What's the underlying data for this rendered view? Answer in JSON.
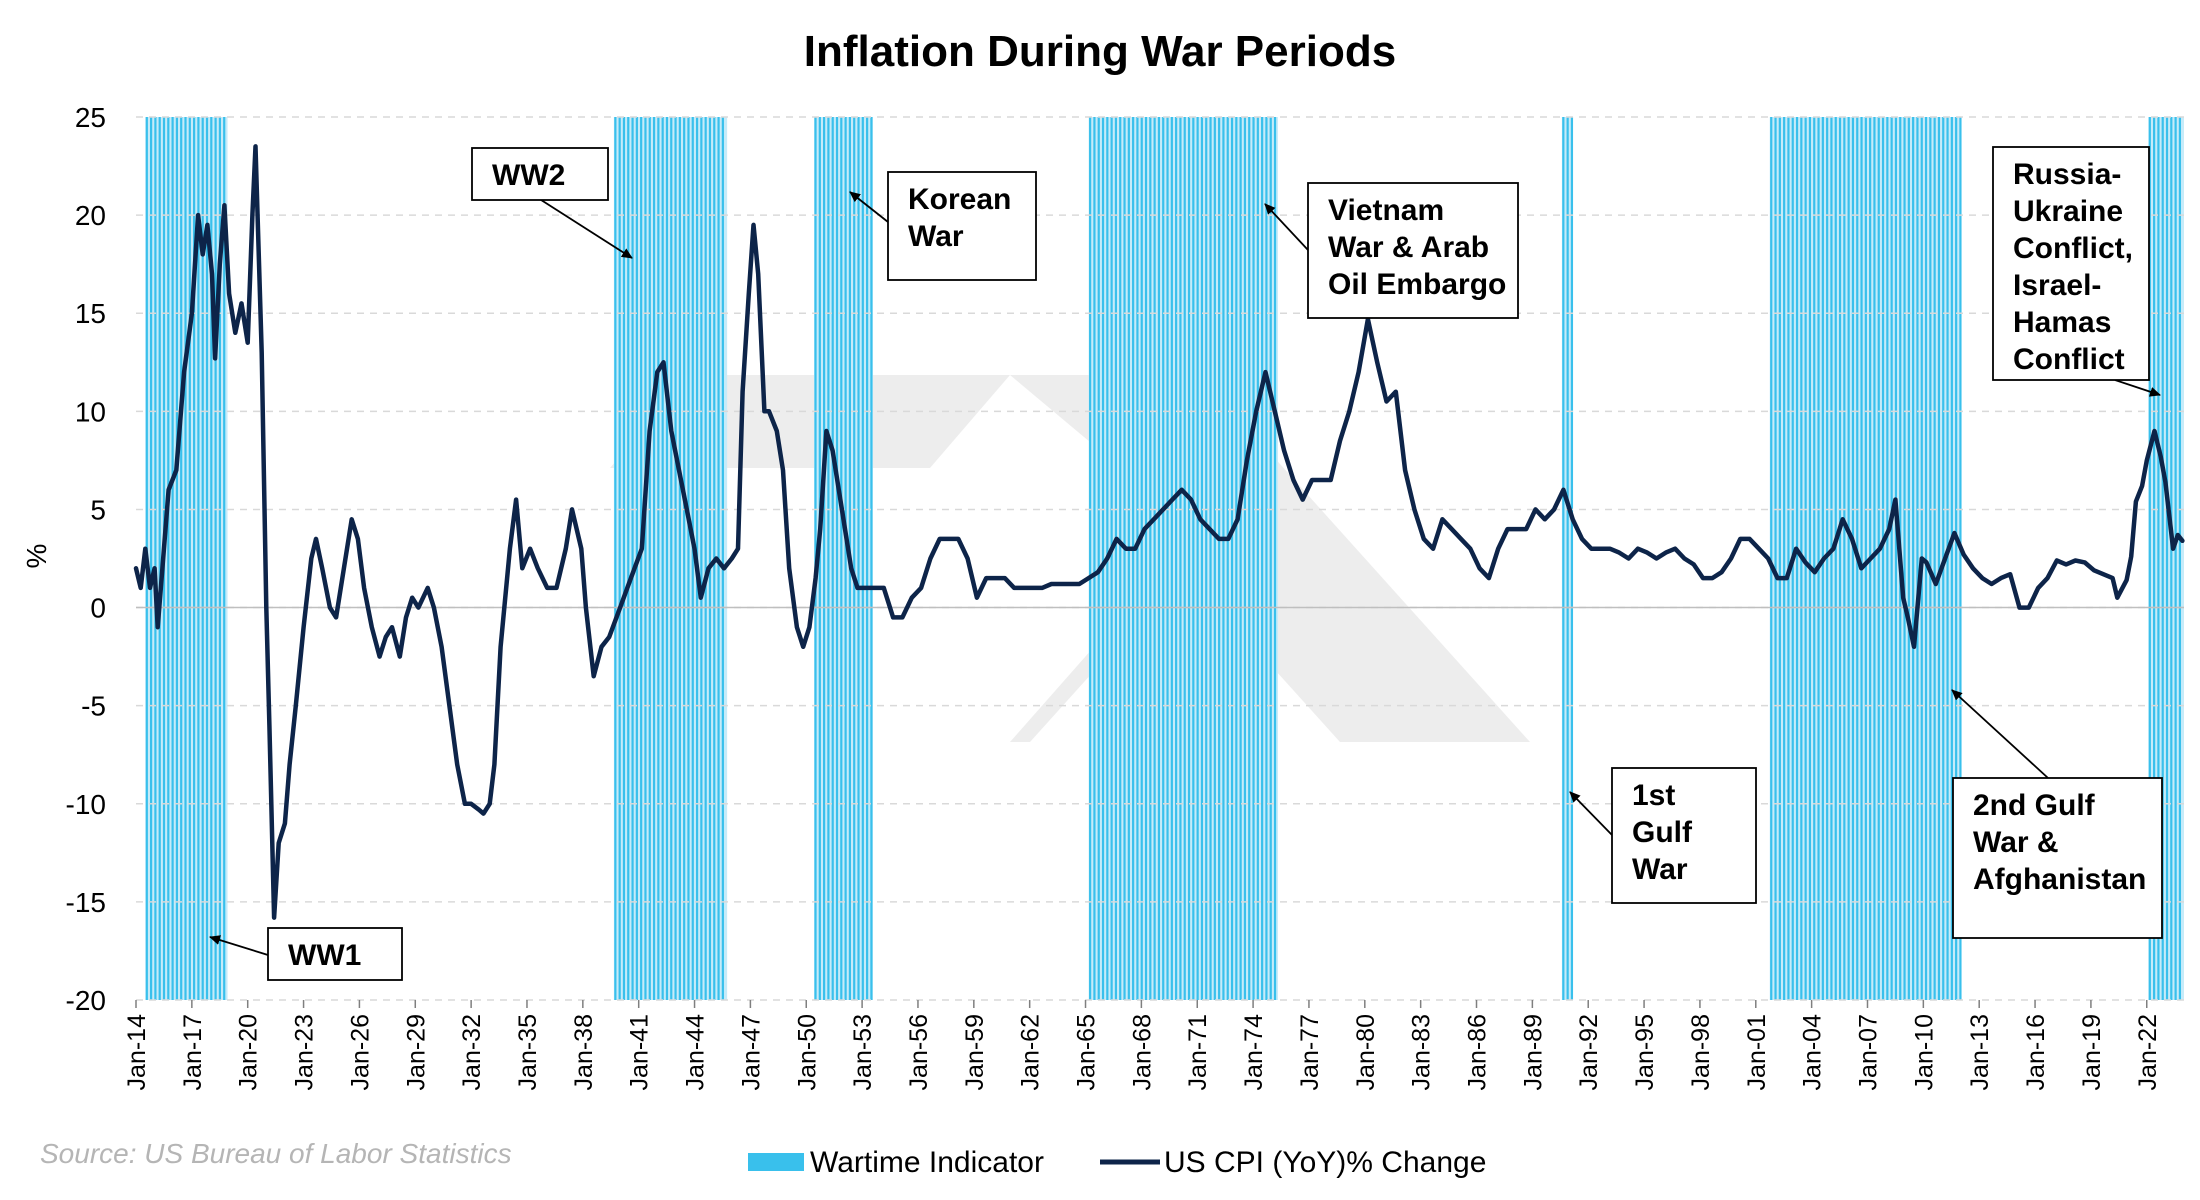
{
  "chart_data": {
    "type": "line",
    "title": "Inflation During War Periods",
    "ylabel": "%",
    "xlabel": "",
    "ylim": [
      -20,
      25
    ],
    "yticks": [
      25,
      20,
      15,
      10,
      5,
      0,
      -5,
      -10,
      -15,
      -20
    ],
    "x_range": [
      "1914-01",
      "2023-12"
    ],
    "x_ticks": [
      "Jan-14",
      "Jan-17",
      "Jan-20",
      "Jan-23",
      "Jan-26",
      "Jan-29",
      "Jan-32",
      "Jan-35",
      "Jan-38",
      "Jan-41",
      "Jan-44",
      "Jan-47",
      "Jan-50",
      "Jan-53",
      "Jan-56",
      "Jan-59",
      "Jan-62",
      "Jan-65",
      "Jan-68",
      "Jan-71",
      "Jan-74",
      "Jan-77",
      "Jan-80",
      "Jan-83",
      "Jan-86",
      "Jan-89",
      "Jan-92",
      "Jan-95",
      "Jan-98",
      "Jan-01",
      "Jan-04",
      "Jan-07",
      "Jan-10",
      "Jan-13",
      "Jan-16",
      "Jan-19",
      "Jan-22"
    ],
    "grid": true,
    "legend_placement": "bottom",
    "source": "Source: US Bureau of Labor Statistics",
    "colors": {
      "line": "#0d2449",
      "wartime": "#39c0ec",
      "wartime_fill": "#c6ebf9",
      "grid": "#d9d9d9"
    },
    "series": [
      {
        "name": "US CPI (YoY)% Change",
        "points": [
          [
            "1914-01",
            2.0
          ],
          [
            "1914-04",
            1.0
          ],
          [
            "1914-07",
            3.0
          ],
          [
            "1914-10",
            1.0
          ],
          [
            "1915-01",
            2.0
          ],
          [
            "1915-03",
            -1.0
          ],
          [
            "1915-06",
            2.0
          ],
          [
            "1915-10",
            6.0
          ],
          [
            "1916-03",
            7.0
          ],
          [
            "1916-08",
            12.0
          ],
          [
            "1917-01",
            15.0
          ],
          [
            "1917-05",
            20.0
          ],
          [
            "1917-08",
            18.0
          ],
          [
            "1917-11",
            19.5
          ],
          [
            "1918-02",
            17.0
          ],
          [
            "1918-04",
            12.7
          ],
          [
            "1918-07",
            17.5
          ],
          [
            "1918-10",
            20.5
          ],
          [
            "1919-01",
            16.0
          ],
          [
            "1919-05",
            14.0
          ],
          [
            "1919-09",
            15.5
          ],
          [
            "1920-01",
            13.5
          ],
          [
            "1920-04",
            20.0
          ],
          [
            "1920-06",
            23.5
          ],
          [
            "1920-10",
            13.0
          ],
          [
            "1921-01",
            0.0
          ],
          [
            "1921-03",
            -6.0
          ],
          [
            "1921-06",
            -15.8
          ],
          [
            "1921-09",
            -12.0
          ],
          [
            "1922-01",
            -11.0
          ],
          [
            "1922-04",
            -8.0
          ],
          [
            "1922-08",
            -5.0
          ],
          [
            "1923-01",
            -1.0
          ],
          [
            "1923-06",
            2.5
          ],
          [
            "1923-09",
            3.5
          ],
          [
            "1924-01",
            2.0
          ],
          [
            "1924-06",
            0.0
          ],
          [
            "1924-10",
            -0.5
          ],
          [
            "1925-03",
            2.0
          ],
          [
            "1925-08",
            4.5
          ],
          [
            "1925-12",
            3.5
          ],
          [
            "1926-04",
            1.0
          ],
          [
            "1926-09",
            -1.0
          ],
          [
            "1927-02",
            -2.5
          ],
          [
            "1927-06",
            -1.5
          ],
          [
            "1927-10",
            -1.0
          ],
          [
            "1928-03",
            -2.5
          ],
          [
            "1928-07",
            -0.5
          ],
          [
            "1928-11",
            0.5
          ],
          [
            "1929-03",
            0.0
          ],
          [
            "1929-09",
            1.0
          ],
          [
            "1930-01",
            0.0
          ],
          [
            "1930-06",
            -2.0
          ],
          [
            "1930-11",
            -5.0
          ],
          [
            "1931-04",
            -8.0
          ],
          [
            "1931-09",
            -10.0
          ],
          [
            "1932-01",
            -10.0
          ],
          [
            "1932-06",
            -10.3
          ],
          [
            "1932-09",
            -10.5
          ],
          [
            "1933-01",
            -10.0
          ],
          [
            "1933-04",
            -8.0
          ],
          [
            "1933-08",
            -2.0
          ],
          [
            "1934-02",
            3.0
          ],
          [
            "1934-06",
            5.5
          ],
          [
            "1934-10",
            2.0
          ],
          [
            "1935-03",
            3.0
          ],
          [
            "1935-08",
            2.0
          ],
          [
            "1936-02",
            1.0
          ],
          [
            "1936-08",
            1.0
          ],
          [
            "1937-02",
            3.0
          ],
          [
            "1937-06",
            5.0
          ],
          [
            "1937-12",
            3.0
          ],
          [
            "1938-03",
            0.0
          ],
          [
            "1938-08",
            -3.5
          ],
          [
            "1939-01",
            -2.0
          ],
          [
            "1939-06",
            -1.5
          ],
          [
            "1940-01",
            0.0
          ],
          [
            "1940-08",
            1.5
          ],
          [
            "1941-03",
            3.0
          ],
          [
            "1941-08",
            9.0
          ],
          [
            "1942-01",
            12.0
          ],
          [
            "1942-05",
            12.5
          ],
          [
            "1942-10",
            9.0
          ],
          [
            "1943-03",
            7.0
          ],
          [
            "1943-08",
            5.0
          ],
          [
            "1944-01",
            3.0
          ],
          [
            "1944-05",
            0.5
          ],
          [
            "1944-10",
            2.0
          ],
          [
            "1945-03",
            2.5
          ],
          [
            "1945-08",
            2.0
          ],
          [
            "1946-01",
            2.5
          ],
          [
            "1946-05",
            3.0
          ],
          [
            "1946-08",
            11.0
          ],
          [
            "1946-12",
            16.0
          ],
          [
            "1947-03",
            19.5
          ],
          [
            "1947-06",
            17.0
          ],
          [
            "1947-10",
            10.0
          ],
          [
            "1948-01",
            10.0
          ],
          [
            "1948-06",
            9.0
          ],
          [
            "1948-10",
            7.0
          ],
          [
            "1949-02",
            2.0
          ],
          [
            "1949-07",
            -1.0
          ],
          [
            "1949-11",
            -2.0
          ],
          [
            "1950-03",
            -1.0
          ],
          [
            "1950-07",
            1.5
          ],
          [
            "1950-10",
            4.0
          ],
          [
            "1951-02",
            9.0
          ],
          [
            "1951-06",
            8.0
          ],
          [
            "1951-10",
            6.0
          ],
          [
            "1952-02",
            4.0
          ],
          [
            "1952-06",
            2.0
          ],
          [
            "1952-10",
            1.0
          ],
          [
            "1953-03",
            1.0
          ],
          [
            "1953-09",
            1.0
          ],
          [
            "1954-03",
            1.0
          ],
          [
            "1954-09",
            -0.5
          ],
          [
            "1955-03",
            -0.5
          ],
          [
            "1955-09",
            0.5
          ],
          [
            "1956-03",
            1.0
          ],
          [
            "1956-09",
            2.5
          ],
          [
            "1957-03",
            3.5
          ],
          [
            "1957-09",
            3.5
          ],
          [
            "1958-03",
            3.5
          ],
          [
            "1958-09",
            2.5
          ],
          [
            "1959-03",
            0.5
          ],
          [
            "1959-09",
            1.5
          ],
          [
            "1960-03",
            1.5
          ],
          [
            "1960-09",
            1.5
          ],
          [
            "1961-03",
            1.0
          ],
          [
            "1961-09",
            1.0
          ],
          [
            "1962-03",
            1.0
          ],
          [
            "1962-09",
            1.0
          ],
          [
            "1963-03",
            1.2
          ],
          [
            "1963-09",
            1.2
          ],
          [
            "1964-03",
            1.2
          ],
          [
            "1964-09",
            1.2
          ],
          [
            "1965-03",
            1.5
          ],
          [
            "1965-09",
            1.8
          ],
          [
            "1966-03",
            2.5
          ],
          [
            "1966-09",
            3.5
          ],
          [
            "1967-03",
            3.0
          ],
          [
            "1967-09",
            3.0
          ],
          [
            "1968-03",
            4.0
          ],
          [
            "1968-09",
            4.5
          ],
          [
            "1969-03",
            5.0
          ],
          [
            "1969-09",
            5.5
          ],
          [
            "1970-03",
            6.0
          ],
          [
            "1970-09",
            5.5
          ],
          [
            "1971-03",
            4.5
          ],
          [
            "1971-09",
            4.0
          ],
          [
            "1972-03",
            3.5
          ],
          [
            "1972-09",
            3.5
          ],
          [
            "1973-03",
            4.5
          ],
          [
            "1973-09",
            7.5
          ],
          [
            "1974-03",
            10.0
          ],
          [
            "1974-09",
            12.0
          ],
          [
            "1975-03",
            10.0
          ],
          [
            "1975-09",
            8.0
          ],
          [
            "1976-03",
            6.5
          ],
          [
            "1976-09",
            5.5
          ],
          [
            "1977-03",
            6.5
          ],
          [
            "1977-09",
            6.5
          ],
          [
            "1978-03",
            6.5
          ],
          [
            "1978-09",
            8.5
          ],
          [
            "1979-03",
            10.0
          ],
          [
            "1979-09",
            12.0
          ],
          [
            "1980-03",
            14.7
          ],
          [
            "1980-09",
            12.5
          ],
          [
            "1981-03",
            10.5
          ],
          [
            "1981-09",
            11.0
          ],
          [
            "1982-03",
            7.0
          ],
          [
            "1982-09",
            5.0
          ],
          [
            "1983-03",
            3.5
          ],
          [
            "1983-09",
            3.0
          ],
          [
            "1984-03",
            4.5
          ],
          [
            "1984-09",
            4.0
          ],
          [
            "1985-03",
            3.5
          ],
          [
            "1985-09",
            3.0
          ],
          [
            "1986-03",
            2.0
          ],
          [
            "1986-09",
            1.5
          ],
          [
            "1987-03",
            3.0
          ],
          [
            "1987-09",
            4.0
          ],
          [
            "1988-03",
            4.0
          ],
          [
            "1988-09",
            4.0
          ],
          [
            "1989-03",
            5.0
          ],
          [
            "1989-09",
            4.5
          ],
          [
            "1990-03",
            5.0
          ],
          [
            "1990-09",
            6.0
          ],
          [
            "1991-03",
            4.5
          ],
          [
            "1991-09",
            3.5
          ],
          [
            "1992-03",
            3.0
          ],
          [
            "1992-09",
            3.0
          ],
          [
            "1993-03",
            3.0
          ],
          [
            "1993-09",
            2.8
          ],
          [
            "1994-03",
            2.5
          ],
          [
            "1994-09",
            3.0
          ],
          [
            "1995-03",
            2.8
          ],
          [
            "1995-09",
            2.5
          ],
          [
            "1996-03",
            2.8
          ],
          [
            "1996-09",
            3.0
          ],
          [
            "1997-03",
            2.5
          ],
          [
            "1997-09",
            2.2
          ],
          [
            "1998-03",
            1.5
          ],
          [
            "1998-09",
            1.5
          ],
          [
            "1999-03",
            1.8
          ],
          [
            "1999-09",
            2.5
          ],
          [
            "2000-03",
            3.5
          ],
          [
            "2000-09",
            3.5
          ],
          [
            "2001-03",
            3.0
          ],
          [
            "2001-09",
            2.5
          ],
          [
            "2002-03",
            1.5
          ],
          [
            "2002-09",
            1.5
          ],
          [
            "2003-03",
            3.0
          ],
          [
            "2003-09",
            2.3
          ],
          [
            "2004-03",
            1.8
          ],
          [
            "2004-09",
            2.5
          ],
          [
            "2005-03",
            3.0
          ],
          [
            "2005-09",
            4.5
          ],
          [
            "2006-03",
            3.5
          ],
          [
            "2006-09",
            2.0
          ],
          [
            "2007-03",
            2.5
          ],
          [
            "2007-09",
            3.0
          ],
          [
            "2008-03",
            4.0
          ],
          [
            "2008-07",
            5.5
          ],
          [
            "2008-12",
            0.5
          ],
          [
            "2009-03",
            -0.5
          ],
          [
            "2009-07",
            -2.0
          ],
          [
            "2009-12",
            2.5
          ],
          [
            "2010-03",
            2.3
          ],
          [
            "2010-09",
            1.2
          ],
          [
            "2011-03",
            2.5
          ],
          [
            "2011-09",
            3.8
          ],
          [
            "2012-03",
            2.7
          ],
          [
            "2012-09",
            2.0
          ],
          [
            "2013-03",
            1.5
          ],
          [
            "2013-09",
            1.2
          ],
          [
            "2014-03",
            1.5
          ],
          [
            "2014-09",
            1.7
          ],
          [
            "2015-03",
            0.0
          ],
          [
            "2015-09",
            0.0
          ],
          [
            "2016-03",
            1.0
          ],
          [
            "2016-09",
            1.5
          ],
          [
            "2017-03",
            2.4
          ],
          [
            "2017-09",
            2.2
          ],
          [
            "2018-03",
            2.4
          ],
          [
            "2018-09",
            2.3
          ],
          [
            "2019-03",
            1.9
          ],
          [
            "2019-09",
            1.7
          ],
          [
            "2020-03",
            1.5
          ],
          [
            "2020-06",
            0.5
          ],
          [
            "2020-12",
            1.4
          ],
          [
            "2021-03",
            2.6
          ],
          [
            "2021-06",
            5.4
          ],
          [
            "2021-10",
            6.2
          ],
          [
            "2022-01",
            7.5
          ],
          [
            "2022-06",
            9.0
          ],
          [
            "2022-10",
            7.7
          ],
          [
            "2023-01",
            6.4
          ],
          [
            "2023-06",
            3.0
          ],
          [
            "2023-09",
            3.7
          ],
          [
            "2023-12",
            3.4
          ]
        ]
      },
      {
        "name": "Wartime Indicator",
        "periods": [
          [
            "1914-07",
            "1918-11"
          ],
          [
            "1939-09",
            "1945-09"
          ],
          [
            "1950-06",
            "1953-07"
          ],
          [
            "1965-03",
            "1975-04"
          ],
          [
            "1990-08",
            "1991-02"
          ],
          [
            "2001-10",
            "2011-12"
          ],
          [
            "2022-02",
            "2023-12"
          ]
        ]
      }
    ],
    "annotations": [
      {
        "lines": [
          "WW1"
        ]
      },
      {
        "lines": [
          "WW2"
        ]
      },
      {
        "lines": [
          "Korean",
          "War"
        ]
      },
      {
        "lines": [
          "Vietnam",
          "War & Arab",
          "Oil Embargo"
        ]
      },
      {
        "lines": [
          "1st",
          "Gulf",
          "War"
        ]
      },
      {
        "lines": [
          "2nd Gulf",
          "War &",
          "Afghanistan"
        ]
      },
      {
        "lines": [
          "Russia-",
          "Ukraine",
          "Conflict,",
          "Israel-",
          "Hamas",
          "Conflict"
        ]
      }
    ]
  }
}
